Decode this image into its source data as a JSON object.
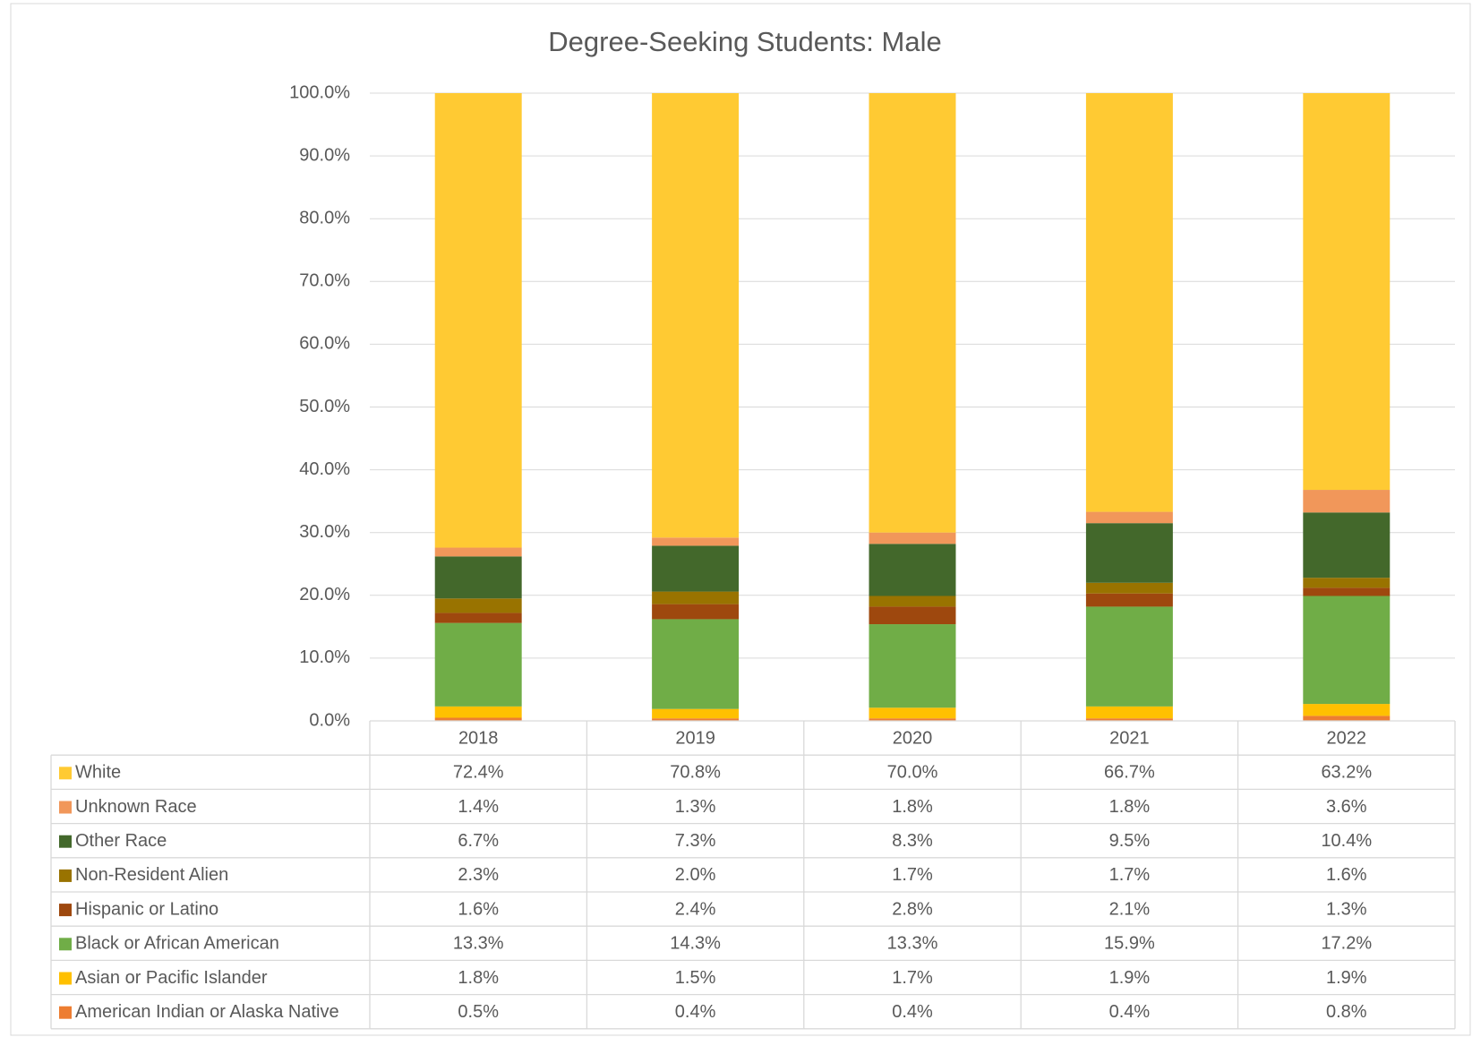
{
  "chart_data": {
    "type": "stacked_bar",
    "title": "Degree-Seeking Students: Male",
    "categories": [
      "2018",
      "2019",
      "2020",
      "2021",
      "2022"
    ],
    "series": [
      {
        "name": "White",
        "color": "#ffca33",
        "values": [
          72.4,
          70.8,
          70.0,
          66.7,
          63.2
        ],
        "value_labels": [
          "72.4%",
          "70.8%",
          "70.0%",
          "66.7%",
          "63.2%"
        ]
      },
      {
        "name": "Unknown Race",
        "color": "#f1975a",
        "values": [
          1.4,
          1.3,
          1.8,
          1.8,
          3.6
        ],
        "value_labels": [
          "1.4%",
          "1.3%",
          "1.8%",
          "1.8%",
          "3.6%"
        ]
      },
      {
        "name": "Other Race",
        "color": "#43682b",
        "values": [
          6.7,
          7.3,
          8.3,
          9.5,
          10.4
        ],
        "value_labels": [
          "6.7%",
          "7.3%",
          "8.3%",
          "9.5%",
          "10.4%"
        ]
      },
      {
        "name": "Non-Resident Alien",
        "color": "#997300",
        "values": [
          2.3,
          2.0,
          1.7,
          1.7,
          1.6
        ],
        "value_labels": [
          "2.3%",
          "2.0%",
          "1.7%",
          "1.7%",
          "1.6%"
        ]
      },
      {
        "name": "Hispanic or Latino",
        "color": "#9e480e",
        "values": [
          1.6,
          2.4,
          2.8,
          2.1,
          1.3
        ],
        "value_labels": [
          "1.6%",
          "2.4%",
          "2.8%",
          "2.1%",
          "1.3%"
        ]
      },
      {
        "name": "Black or African American",
        "color": "#70ad47",
        "values": [
          13.3,
          14.3,
          13.3,
          15.9,
          17.2
        ],
        "value_labels": [
          "13.3%",
          "14.3%",
          "13.3%",
          "15.9%",
          "17.2%"
        ]
      },
      {
        "name": "Asian or Pacific Islander",
        "color": "#ffc000",
        "values": [
          1.8,
          1.5,
          1.7,
          1.9,
          1.9
        ],
        "value_labels": [
          "1.8%",
          "1.5%",
          "1.7%",
          "1.9%",
          "1.9%"
        ]
      },
      {
        "name": "American Indian or Alaska Native",
        "color": "#ed7d31",
        "values": [
          0.5,
          0.4,
          0.4,
          0.4,
          0.8
        ],
        "value_labels": [
          "0.5%",
          "0.4%",
          "0.4%",
          "0.4%",
          "0.8%"
        ]
      }
    ],
    "ylim": [
      0,
      100
    ],
    "yticks": [
      {
        "value": 0,
        "label": "0.0%"
      },
      {
        "value": 10,
        "label": "10.0%"
      },
      {
        "value": 20,
        "label": "20.0%"
      },
      {
        "value": 30,
        "label": "30.0%"
      },
      {
        "value": 40,
        "label": "40.0%"
      },
      {
        "value": 50,
        "label": "50.0%"
      },
      {
        "value": 60,
        "label": "60.0%"
      },
      {
        "value": 70,
        "label": "70.0%"
      },
      {
        "value": 80,
        "label": "80.0%"
      },
      {
        "value": 90,
        "label": "90.0%"
      },
      {
        "value": 100,
        "label": "100.0%"
      }
    ],
    "grid": true
  }
}
